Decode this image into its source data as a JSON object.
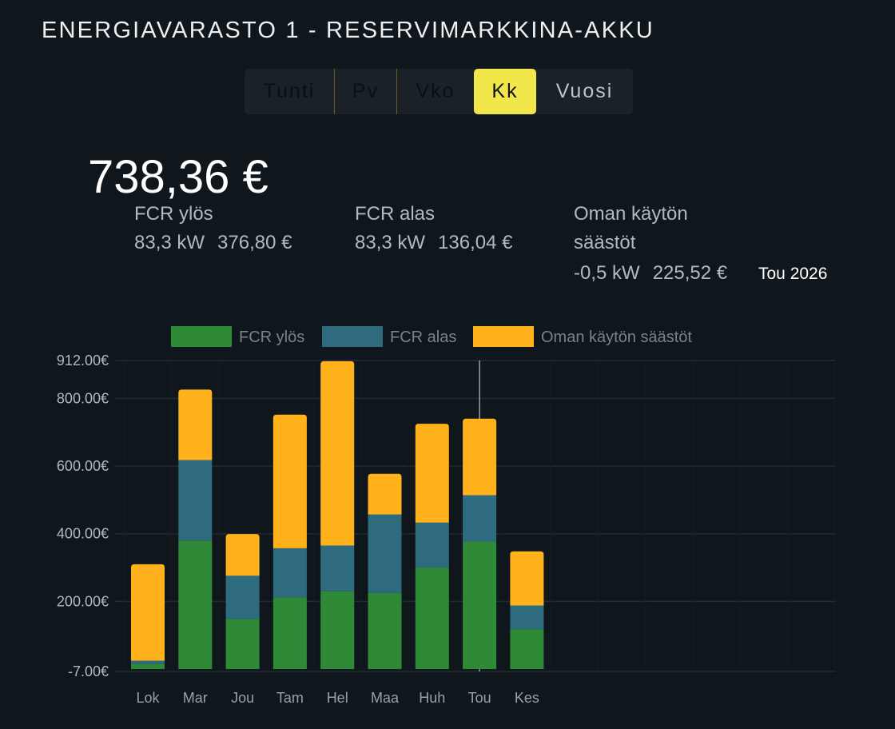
{
  "header": {
    "title": "ENERGIAVARASTO 1 - RESERVIMARKKINA-AKKU"
  },
  "tabs": [
    {
      "label": "Tunti",
      "active": false
    },
    {
      "label": "Pv",
      "active": false
    },
    {
      "label": "Vko",
      "active": false
    },
    {
      "label": "Kk",
      "active": true
    },
    {
      "label": "Vuosi",
      "active": false
    }
  ],
  "summary": {
    "total": "738,36 €",
    "fcr_up": {
      "label": "FCR ylös",
      "power": "83,3 kW",
      "value": "376,80 €"
    },
    "fcr_down": {
      "label": "FCR alas",
      "power": "83,3 kW",
      "value": "136,04 €"
    },
    "savings": {
      "label_line1": "Oman käytön",
      "label_line2": "säästöt",
      "power": "-0,5 kW",
      "value": "225,52 €"
    },
    "period": "Tou 2026"
  },
  "chart_data": {
    "type": "bar",
    "stacked": true,
    "categories": [
      "Lok",
      "Mar",
      "Jou",
      "Tam",
      "Hel",
      "Maa",
      "Huh",
      "Tou",
      "Kes"
    ],
    "series": [
      {
        "name": "FCR ylös",
        "color": "#2e8a36",
        "values": [
          15,
          380,
          148,
          212,
          230,
          225,
          300,
          377,
          118
        ]
      },
      {
        "name": "FCR alas",
        "color": "#2f6b7e",
        "values": [
          10,
          238,
          128,
          145,
          135,
          232,
          133,
          137,
          70
        ]
      },
      {
        "name": "Oman käytön säästöt",
        "color": "#ffb21c",
        "values": [
          285,
          208,
          123,
          395,
          545,
          120,
          292,
          226,
          160
        ]
      }
    ],
    "ylim": [
      -7,
      912
    ],
    "yticks": [
      -7,
      200,
      400,
      600,
      800,
      912
    ],
    "ytick_labels": [
      "-7.00€",
      "200.00€",
      "400.00€",
      "600.00€",
      "800.00€",
      "912.00€"
    ],
    "highlight_category": "Tou",
    "grid": true,
    "legend": "top"
  }
}
